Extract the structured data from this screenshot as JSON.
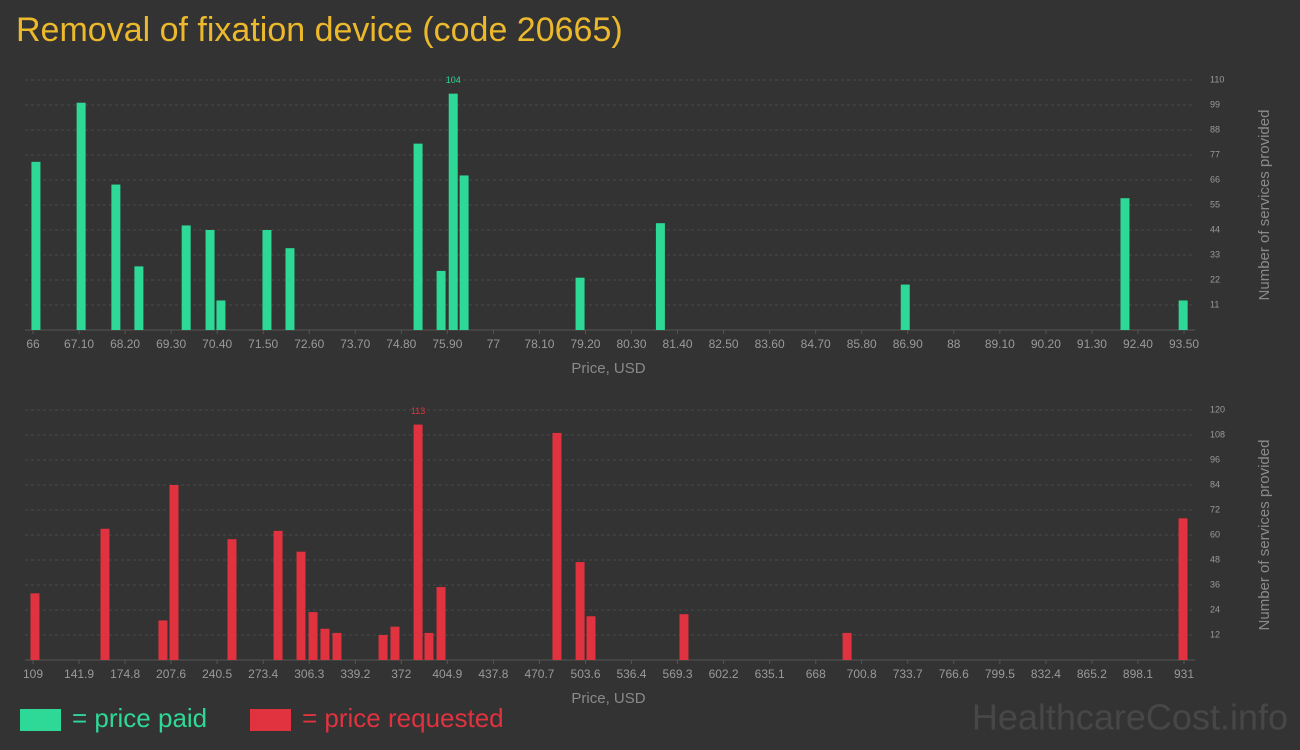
{
  "title": "Removal of fixation device (code 20665)",
  "watermark": "HealthcareCost.info",
  "chart_data": [
    {
      "type": "bar",
      "xlabel": "Price, USD",
      "ylabel": "Number of services provided",
      "grid": true,
      "xlim": [
        66,
        93.5
      ],
      "ylim": [
        0,
        110
      ],
      "xticks": [
        66,
        {
          "value": 67.1,
          "label": "67.10"
        },
        {
          "value": 68.2,
          "label": "68.20"
        },
        {
          "value": 69.3,
          "label": "69.30"
        },
        {
          "value": 70.4,
          "label": "70.40"
        },
        {
          "value": 71.5,
          "label": "71.50"
        },
        {
          "value": 72.6,
          "label": "72.60"
        },
        {
          "value": 73.7,
          "label": "73.70"
        },
        {
          "value": 74.8,
          "label": "74.80"
        },
        {
          "value": 75.9,
          "label": "75.90"
        },
        77,
        {
          "value": 78.1,
          "label": "78.10"
        },
        {
          "value": 79.2,
          "label": "79.20"
        },
        {
          "value": 80.3,
          "label": "80.30"
        },
        {
          "value": 81.4,
          "label": "81.40"
        },
        {
          "value": 82.5,
          "label": "82.50"
        },
        {
          "value": 83.6,
          "label": "83.60"
        },
        {
          "value": 84.7,
          "label": "84.70"
        },
        {
          "value": 85.8,
          "label": "85.80"
        },
        {
          "value": 86.9,
          "label": "86.90"
        },
        88,
        {
          "value": 89.1,
          "label": "89.10"
        },
        {
          "value": 90.2,
          "label": "90.20"
        },
        {
          "value": 91.3,
          "label": "91.30"
        },
        {
          "value": 92.4,
          "label": "92.40"
        },
        {
          "value": 93.5,
          "label": "93.50"
        }
      ],
      "yticks": [
        11,
        22,
        33,
        44,
        55,
        66,
        77,
        88,
        99,
        110
      ],
      "x": [
        66.07,
        67.15,
        67.98,
        68.53,
        69.66,
        70.23,
        70.49,
        71.59,
        72.14,
        75.2,
        75.75,
        76.04,
        76.3,
        79.07,
        80.99,
        86.84,
        92.09,
        93.48
      ],
      "series": [
        {
          "name": "= price paid",
          "color": "#2ed897",
          "values": [
            74,
            100,
            64,
            28,
            46,
            44,
            13,
            44,
            36,
            82,
            26,
            104,
            68,
            23,
            47,
            20,
            58,
            13
          ]
        }
      ]
    },
    {
      "type": "bar",
      "xlabel": "Price, USD",
      "ylabel": "Number of services provided",
      "grid": true,
      "xlim": [
        109,
        931
      ],
      "ylim": [
        0,
        120
      ],
      "xticks": [
        109,
        141.9,
        174.8,
        207.6,
        240.5,
        273.4,
        306.3,
        339.2,
        372,
        404.9,
        437.8,
        470.7,
        503.6,
        536.4,
        569.3,
        602.2,
        635.1,
        668,
        700.8,
        733.7,
        766.6,
        799.5,
        832.4,
        865.2,
        898.1,
        931
      ],
      "yticks": [
        12,
        24,
        36,
        48,
        60,
        72,
        84,
        96,
        108,
        120
      ],
      "x": [
        110.4,
        160.4,
        201.8,
        209.7,
        251.1,
        284,
        300.4,
        309,
        317.5,
        326.1,
        359,
        367.5,
        384,
        391.8,
        400.4,
        483.2,
        499.7,
        507.5,
        573.9,
        690.4,
        930.3
      ],
      "series": [
        {
          "name": "= price requested",
          "color": "#e0323f",
          "values": [
            32,
            63,
            19,
            84,
            58,
            62,
            52,
            23,
            15,
            13,
            12,
            16,
            113,
            13,
            35,
            109,
            47,
            21,
            22,
            13,
            68
          ]
        }
      ]
    }
  ]
}
